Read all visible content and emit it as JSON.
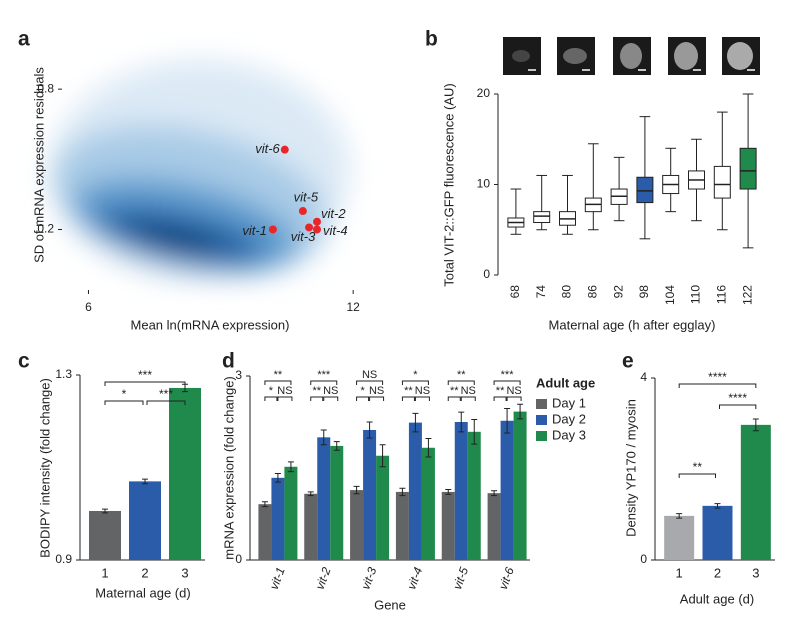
{
  "chart_data": [
    {
      "type": "scatter",
      "panel": "a",
      "x_label": "Mean ln(mRNA expression)",
      "y_label": "SD of mRNA expression residuals",
      "xlim": [
        5.4,
        12.2
      ],
      "xticks": [
        6,
        12
      ],
      "ylim": [
        0.11,
        1.3
      ],
      "yticks": [
        0.2,
        0.8
      ],
      "log_y": true,
      "point_labels": [
        "vit-1",
        "vit-2",
        "vit-3",
        "vit-4",
        "vit-5",
        "vit-6"
      ],
      "x": [
        10.18,
        11.18,
        11.0,
        11.18,
        10.86,
        10.45
      ],
      "values": [
        0.2,
        0.216,
        0.204,
        0.2,
        0.24,
        0.44
      ],
      "color": "#e8262a"
    },
    {
      "type": "box",
      "panel": "b",
      "x_label": "Maternal age (h after egglay)",
      "y_label": "Total VIT-2::GFP fluorescence (AU)",
      "categories": [
        "68",
        "74",
        "80",
        "86",
        "92",
        "98",
        "104",
        "110",
        "116",
        "122"
      ],
      "ylim": [
        0,
        20
      ],
      "yticks": [
        0,
        10,
        20
      ],
      "min": [
        4.5,
        5,
        4.5,
        5,
        6,
        4,
        7,
        6,
        5,
        3
      ],
      "q1": [
        5.3,
        5.8,
        5.5,
        7,
        7.8,
        8,
        9,
        9.5,
        8.5,
        9.5
      ],
      "median": [
        5.8,
        6.5,
        6.2,
        7.8,
        8.7,
        9.3,
        10,
        10.5,
        10,
        11.5
      ],
      "q3": [
        6.3,
        7,
        7,
        8.5,
        9.5,
        10.8,
        11,
        11.5,
        12,
        14
      ],
      "max": [
        9.5,
        11,
        11,
        14.5,
        13,
        17.5,
        14,
        15,
        18,
        20
      ],
      "colors": [
        "#ffffff",
        "#ffffff",
        "#ffffff",
        "#ffffff",
        "#ffffff",
        "#2a5caa",
        "#ffffff",
        "#ffffff",
        "#ffffff",
        "#1f8a4c"
      ]
    },
    {
      "type": "bar",
      "panel": "c",
      "x_label": "Maternal age (d)",
      "y_label": "BODIPY intensity (fold change)",
      "categories": [
        "1",
        "2",
        "3"
      ],
      "ylim": [
        0.9,
        1.3
      ],
      "yticks": [
        0.9,
        1.3
      ],
      "values": [
        1.006,
        1.07,
        1.272
      ],
      "errors": [
        0.004,
        0.005,
        0.008
      ],
      "colors": [
        "#636466",
        "#2a5caa",
        "#1f8a4c"
      ],
      "annotations": [
        "***",
        "*",
        "***"
      ]
    },
    {
      "type": "bar",
      "panel": "d",
      "x_label": "Gene",
      "y_label": "mRNA expression (fold change)",
      "categories": [
        "vit-1",
        "vit-2",
        "vit-3",
        "vit-4",
        "vit-5",
        "vit-6"
      ],
      "ylim": [
        0,
        3
      ],
      "yticks": [
        0,
        3
      ],
      "legend_title": "Adult age",
      "series": [
        {
          "name": "Day 1",
          "color": "#636466",
          "values": [
            0.91,
            1.08,
            1.14,
            1.11,
            1.11,
            1.09
          ],
          "errors": [
            0.04,
            0.03,
            0.06,
            0.06,
            0.04,
            0.04
          ]
        },
        {
          "name": "Day 2",
          "color": "#2a5caa",
          "values": [
            1.34,
            2.0,
            2.12,
            2.24,
            2.25,
            2.27
          ],
          "errors": [
            0.07,
            0.12,
            0.13,
            0.15,
            0.16,
            0.2
          ]
        },
        {
          "name": "Day 3",
          "color": "#1f8a4c",
          "values": [
            1.52,
            1.86,
            1.7,
            1.83,
            2.09,
            2.42
          ],
          "errors": [
            0.08,
            0.07,
            0.18,
            0.15,
            0.2,
            0.12
          ]
        }
      ],
      "annotations": [
        [
          "**",
          "*",
          "NS"
        ],
        [
          "***",
          "**",
          "NS"
        ],
        [
          "NS",
          "*",
          "NS"
        ],
        [
          "*",
          "**",
          "NS"
        ],
        [
          "**",
          "**",
          "NS"
        ],
        [
          "***",
          "**",
          "NS"
        ]
      ]
    },
    {
      "type": "bar",
      "panel": "e",
      "x_label": "Adult age (d)",
      "y_label": "Density YP170 / myosin",
      "categories": [
        "1",
        "2",
        "3"
      ],
      "ylim": [
        0,
        4
      ],
      "yticks": [
        0,
        4
      ],
      "values": [
        0.97,
        1.19,
        2.97
      ],
      "errors": [
        0.05,
        0.05,
        0.13
      ],
      "colors": [
        "#a7a9ac",
        "#2a5caa",
        "#1f8a4c"
      ],
      "annotations": [
        "****",
        "****",
        "**"
      ]
    }
  ]
}
